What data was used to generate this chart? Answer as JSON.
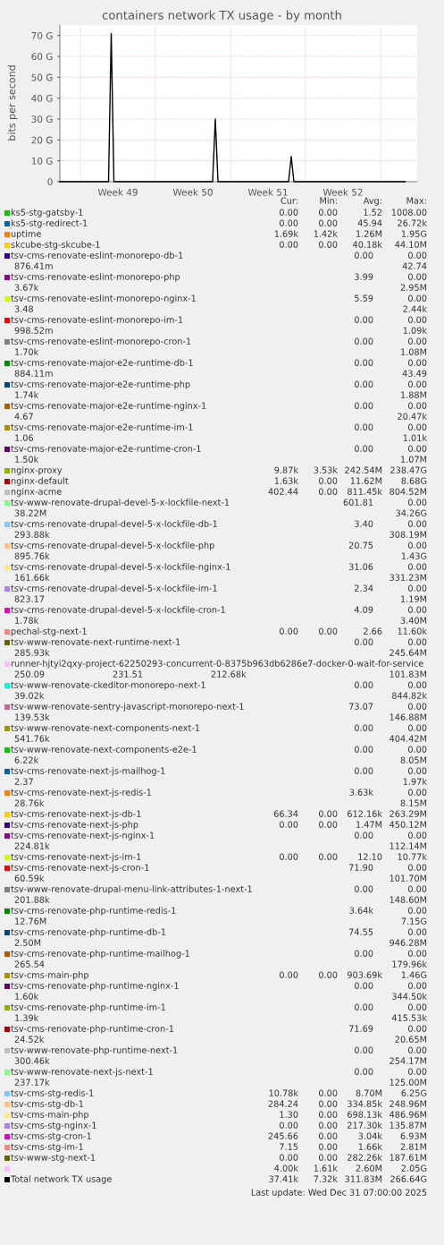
{
  "chart_data": {
    "type": "line",
    "title": "containers network TX usage - by month",
    "ylabel": "bits per second",
    "x": [
      "2025-11-29T02:00",
      "2025-12-03T15:00",
      "2025-12-03T21:00",
      "2025-12-04T03:00",
      "2025-12-13T08:00",
      "2025-12-13T14:00",
      "2025-12-13T20:00",
      "2025-12-20T10:00",
      "2025-12-20T16:00",
      "2025-12-20T22:00",
      "2025-12-31T07:00"
    ],
    "xlim": [
      "2025-11-29T02:00",
      "2026-01-01T10:00"
    ],
    "xticks": [
      {
        "value": "2025-12-01",
        "label": null
      },
      {
        "value": "2025-12-04T12:00",
        "label": "Week 49"
      },
      {
        "value": "2025-12-08",
        "label": null
      },
      {
        "value": "2025-12-11T12:00",
        "label": "Week 50"
      },
      {
        "value": "2025-12-15",
        "label": null
      },
      {
        "value": "2025-12-18T12:00",
        "label": "Week 51"
      },
      {
        "value": "2025-12-22",
        "label": null
      },
      {
        "value": "2025-12-25T12:00",
        "label": "Week 52"
      },
      {
        "value": "2025-12-29",
        "label": null
      }
    ],
    "ylim": [
      0,
      75
    ],
    "yticks": [
      0,
      {
        "value": 10,
        "label": "10 G"
      },
      {
        "value": 20,
        "label": "20 G"
      },
      {
        "value": 30,
        "label": "30 G"
      },
      {
        "value": 40,
        "label": "40 G"
      },
      {
        "value": 50,
        "label": "50 G"
      },
      {
        "value": 60,
        "label": "60 G"
      },
      {
        "value": 70,
        "label": "70 G"
      }
    ],
    "grid": true,
    "legend": "bottom",
    "series": [
      {
        "name": "ks5-stg-gatsby-1",
        "color": "#00cc00",
        "values": [
          null,
          null,
          null,
          null,
          null,
          null,
          null,
          null,
          null,
          null,
          null
        ]
      },
      {
        "name": "ks5-stg-redirect-1",
        "color": "#0066b3",
        "values": [
          null,
          null,
          null,
          null,
          null,
          null,
          null,
          null,
          null,
          null,
          null
        ]
      },
      {
        "name": "uptime",
        "color": "#ff8000",
        "values": [
          null,
          null,
          null,
          null,
          null,
          null,
          null,
          null,
          null,
          null,
          null
        ]
      },
      {
        "name": "skcube-stg-skcube-1",
        "color": "#ffcc00",
        "values": [
          null,
          null,
          null,
          null,
          null,
          null,
          null,
          null,
          null,
          null,
          null
        ]
      },
      {
        "name": "tsv-cms-renovate-eslint-monorepo-db-1",
        "color": "#330099",
        "values": [
          null,
          null,
          null,
          null,
          null,
          null,
          null,
          null,
          null,
          null,
          null
        ]
      },
      {
        "name": "tsv-cms-renovate-eslint-monorepo-php",
        "color": "#990099",
        "values": [
          null,
          null,
          null,
          null,
          null,
          null,
          null,
          null,
          null,
          null,
          null
        ]
      },
      {
        "name": "tsv-cms-renovate-eslint-monorepo-nginx-1",
        "color": "#ccff00",
        "values": [
          null,
          null,
          null,
          null,
          null,
          null,
          null,
          null,
          null,
          null,
          null
        ]
      },
      {
        "name": "tsv-cms-renovate-eslint-monorepo-im-1",
        "color": "#ff0000",
        "values": [
          null,
          null,
          null,
          null,
          null,
          null,
          null,
          null,
          null,
          null,
          null
        ]
      },
      {
        "name": "tsv-cms-renovate-eslint-monorepo-cron-1",
        "color": "#808080",
        "values": [
          null,
          null,
          null,
          null,
          null,
          null,
          null,
          null,
          null,
          null,
          null
        ]
      },
      {
        "name": "tsv-cms-renovate-major-e2e-runtime-db-1",
        "color": "#008f00",
        "values": [
          null,
          null,
          null,
          null,
          null,
          null,
          null,
          null,
          null,
          null,
          null
        ]
      },
      {
        "name": "tsv-cms-renovate-major-e2e-runtime-php",
        "color": "#00487d",
        "values": [
          null,
          null,
          null,
          null,
          null,
          null,
          null,
          null,
          null,
          null,
          null
        ]
      },
      {
        "name": "tsv-cms-renovate-major-e2e-runtime-nginx-1",
        "color": "#b35a00",
        "values": [
          null,
          null,
          null,
          null,
          null,
          null,
          null,
          null,
          null,
          null,
          null
        ]
      },
      {
        "name": "tsv-cms-renovate-major-e2e-runtime-im-1",
        "color": "#b38f00",
        "values": [
          null,
          null,
          null,
          null,
          null,
          null,
          null,
          null,
          null,
          null,
          null
        ]
      },
      {
        "name": "tsv-cms-renovate-major-e2e-runtime-cron-1",
        "color": "#6b006b",
        "values": [
          null,
          null,
          null,
          null,
          null,
          null,
          null,
          null,
          null,
          null,
          null
        ]
      },
      {
        "name": "nginx-proxy",
        "color": "#8fb300",
        "values": [
          null,
          null,
          null,
          null,
          null,
          null,
          null,
          null,
          null,
          null,
          null
        ]
      },
      {
        "name": "nginx-default",
        "color": "#b30000",
        "values": [
          null,
          null,
          null,
          null,
          null,
          null,
          null,
          null,
          null,
          null,
          null
        ]
      },
      {
        "name": "nginx-acme",
        "color": "#bebebe",
        "values": [
          null,
          null,
          null,
          null,
          null,
          null,
          null,
          null,
          null,
          null,
          null
        ]
      },
      {
        "name": "tsv-www-renovate-drupal-devel-5-x-lockfile-next-1",
        "color": "#80ff80",
        "values": [
          null,
          null,
          null,
          null,
          null,
          null,
          null,
          null,
          null,
          null,
          null
        ]
      },
      {
        "name": "tsv-cms-renovate-drupal-devel-5-x-lockfile-db-1",
        "color": "#80c9ff",
        "values": [
          null,
          null,
          null,
          null,
          null,
          null,
          null,
          null,
          null,
          null,
          null
        ]
      },
      {
        "name": "tsv-cms-renovate-drupal-devel-5-x-lockfile-php",
        "color": "#ffc080",
        "values": [
          null,
          null,
          null,
          null,
          null,
          null,
          null,
          null,
          null,
          null,
          null
        ]
      },
      {
        "name": "tsv-cms-renovate-drupal-devel-5-x-lockfile-nginx-1",
        "color": "#ffe680",
        "values": [
          null,
          null,
          null,
          null,
          null,
          null,
          null,
          null,
          null,
          null,
          null
        ]
      },
      {
        "name": "tsv-cms-renovate-drupal-devel-5-x-lockfile-im-1",
        "color": "#aa80ff",
        "values": [
          null,
          null,
          null,
          null,
          null,
          null,
          null,
          null,
          null,
          null,
          null
        ]
      },
      {
        "name": "tsv-cms-renovate-drupal-devel-5-x-lockfile-cron-1",
        "color": "#ee00cc",
        "values": [
          null,
          null,
          null,
          null,
          null,
          null,
          null,
          null,
          null,
          null,
          null
        ]
      },
      {
        "name": "pechal-stg-next-1",
        "color": "#ff8080",
        "values": [
          null,
          null,
          null,
          null,
          null,
          null,
          null,
          null,
          null,
          null,
          null
        ]
      },
      {
        "name": "tsv-www-renovate-next-runtime-next-1",
        "color": "#666600",
        "values": [
          null,
          null,
          null,
          null,
          null,
          null,
          null,
          null,
          null,
          null,
          null
        ]
      },
      {
        "name": "runner-hjtyi2qxy-project-62250293-concurrent-0-8375b963db6286e7-docker-0-wait-for-service",
        "color": "#ffbfff",
        "values": [
          null,
          null,
          null,
          null,
          null,
          null,
          null,
          null,
          null,
          null,
          null
        ]
      },
      {
        "name": "tsv-www-renovate-ckeditor-monorepo-next-1",
        "color": "#00ffcc",
        "values": [
          null,
          null,
          null,
          null,
          null,
          null,
          null,
          null,
          null,
          null,
          null
        ]
      },
      {
        "name": "tsv-www-renovate-sentry-javascript-monorepo-next-1",
        "color": "#cc6699",
        "values": [
          null,
          null,
          null,
          null,
          null,
          null,
          null,
          null,
          null,
          null,
          null
        ]
      },
      {
        "name": "tsv-www-renovate-next-components-next-1",
        "color": "#999900",
        "values": [
          null,
          null,
          null,
          null,
          null,
          null,
          null,
          null,
          null,
          null,
          null
        ]
      },
      {
        "name": "tsv-www-renovate-next-components-e2e-1",
        "color": "#00cc00",
        "values": [
          null,
          null,
          null,
          null,
          null,
          null,
          null,
          null,
          null,
          null,
          null
        ]
      },
      {
        "name": "tsv-cms-renovate-next-js-mailhog-1",
        "color": "#0066b3",
        "values": [
          null,
          null,
          null,
          null,
          null,
          null,
          null,
          null,
          null,
          null,
          null
        ]
      },
      {
        "name": "tsv-cms-renovate-next-js-redis-1",
        "color": "#ff8000",
        "values": [
          null,
          null,
          null,
          null,
          null,
          null,
          null,
          null,
          null,
          null,
          null
        ]
      },
      {
        "name": "tsv-cms-renovate-next-js-db-1",
        "color": "#ffcc00",
        "values": [
          null,
          null,
          null,
          null,
          null,
          null,
          null,
          null,
          null,
          null,
          null
        ]
      },
      {
        "name": "tsv-cms-renovate-next-js-php",
        "color": "#330099",
        "values": [
          null,
          null,
          null,
          null,
          null,
          null,
          null,
          null,
          null,
          null,
          null
        ]
      },
      {
        "name": "tsv-cms-renovate-next-js-nginx-1",
        "color": "#990099",
        "values": [
          null,
          null,
          null,
          null,
          null,
          null,
          null,
          null,
          null,
          null,
          null
        ]
      },
      {
        "name": "tsv-cms-renovate-next-js-im-1",
        "color": "#ccff00",
        "values": [
          null,
          null,
          null,
          null,
          null,
          null,
          null,
          null,
          null,
          null,
          null
        ]
      },
      {
        "name": "tsv-cms-renovate-next-js-cron-1",
        "color": "#ff0000",
        "values": [
          null,
          null,
          null,
          null,
          null,
          null,
          null,
          null,
          null,
          null,
          null
        ]
      },
      {
        "name": "tsv-www-renovate-drupal-menu-link-attributes-1-next-1",
        "color": "#808080",
        "values": [
          null,
          null,
          null,
          null,
          null,
          null,
          null,
          null,
          null,
          null,
          null
        ]
      },
      {
        "name": "tsv-cms-renovate-php-runtime-redis-1",
        "color": "#008f00",
        "values": [
          null,
          null,
          null,
          null,
          null,
          null,
          null,
          null,
          null,
          null,
          null
        ]
      },
      {
        "name": "tsv-cms-renovate-php-runtime-db-1",
        "color": "#00487d",
        "values": [
          null,
          null,
          null,
          null,
          null,
          null,
          null,
          null,
          null,
          null,
          null
        ]
      },
      {
        "name": "tsv-cms-renovate-php-runtime-mailhog-1",
        "color": "#b35a00",
        "values": [
          null,
          null,
          null,
          null,
          null,
          null,
          null,
          null,
          null,
          null,
          null
        ]
      },
      {
        "name": "tsv-cms-main-php",
        "color": "#b38f00",
        "values": [
          null,
          null,
          null,
          null,
          null,
          null,
          null,
          null,
          null,
          null,
          null
        ]
      },
      {
        "name": "tsv-cms-renovate-php-runtime-nginx-1",
        "color": "#6b006b",
        "values": [
          null,
          null,
          null,
          null,
          null,
          null,
          null,
          null,
          null,
          null,
          null
        ]
      },
      {
        "name": "tsv-cms-renovate-php-runtime-im-1",
        "color": "#8fb300",
        "values": [
          null,
          null,
          null,
          null,
          null,
          null,
          null,
          null,
          null,
          null,
          null
        ]
      },
      {
        "name": "tsv-cms-renovate-php-runtime-cron-1",
        "color": "#b30000",
        "values": [
          null,
          null,
          null,
          null,
          null,
          null,
          null,
          null,
          null,
          null,
          null
        ]
      },
      {
        "name": "tsv-www-renovate-php-runtime-next-1",
        "color": "#bebebe",
        "values": [
          null,
          null,
          null,
          null,
          null,
          null,
          null,
          null,
          null,
          null,
          null
        ]
      },
      {
        "name": "tsv-www-renovate-next-js-next-1",
        "color": "#80ff80",
        "values": [
          null,
          null,
          null,
          null,
          null,
          null,
          null,
          null,
          null,
          null,
          null
        ]
      },
      {
        "name": "tsv-cms-stg-redis-1",
        "color": "#80c9ff",
        "values": [
          null,
          null,
          null,
          null,
          null,
          null,
          null,
          null,
          null,
          null,
          null
        ]
      },
      {
        "name": "tsv-cms-stg-db-1",
        "color": "#ffc080",
        "values": [
          null,
          null,
          null,
          null,
          null,
          null,
          null,
          null,
          null,
          null,
          null
        ]
      },
      {
        "name": "tsv-cms-main-php",
        "color": "#ffe680",
        "values": [
          null,
          null,
          null,
          null,
          null,
          null,
          null,
          null,
          null,
          null,
          null
        ]
      },
      {
        "name": "tsv-cms-stg-nginx-1",
        "color": "#aa80ff",
        "values": [
          null,
          null,
          null,
          null,
          null,
          null,
          null,
          null,
          null,
          null,
          null
        ]
      },
      {
        "name": "tsv-cms-stg-cron-1",
        "color": "#ee00cc",
        "values": [
          null,
          null,
          null,
          null,
          null,
          null,
          null,
          null,
          null,
          null,
          null
        ]
      },
      {
        "name": "tsv-cms-stg-im-1",
        "color": "#ff8080",
        "values": [
          null,
          null,
          null,
          null,
          null,
          null,
          null,
          null,
          null,
          null,
          null
        ]
      },
      {
        "name": "tsv-www-stg-next-1",
        "color": "#666600",
        "values": [
          null,
          null,
          null,
          null,
          null,
          null,
          null,
          null,
          null,
          null,
          null
        ]
      },
      {
        "color": "#ffbfff",
        "values": [
          null,
          null,
          null,
          null,
          null,
          null,
          null,
          null,
          null,
          null,
          null
        ]
      },
      {
        "name": "Total network TX usage",
        "color": "#000000",
        "values": [
          0,
          0,
          71,
          0,
          0,
          30,
          0,
          0,
          12,
          0,
          0
        ]
      }
    ],
    "annotations": [
      "Cur:",
      "Min:",
      "Avg:",
      "Max:",
      "0.00",
      "0.00",
      "1.52",
      "1008.00",
      "0.00",
      "0.00",
      "45.94",
      "26.72k",
      "1.69k",
      "1.42k",
      "1.26M",
      "1.95G",
      "0.00",
      "0.00",
      "40.18k",
      "44.10M",
      "0.00",
      "0.00",
      "876.41m",
      "42.74",
      "3.99",
      "0.00",
      "3.67k",
      "2.95M",
      "5.59",
      "0.00",
      "3.48",
      "2.44k",
      "0.00",
      "0.00",
      "998.52m",
      "1.09k",
      "0.00",
      "0.00",
      "1.70k",
      "1.08M",
      "0.00",
      "0.00",
      "884.11m",
      "43.49",
      "0.00",
      "0.00",
      "1.74k",
      "1.88M",
      "0.00",
      "0.00",
      "4.67",
      "20.47k",
      "0.00",
      "0.00",
      "1.06",
      "1.01k",
      "0.00",
      "0.00",
      "1.50k",
      "1.07M",
      "9.87k",
      "3.53k",
      "242.54M",
      "238.47G",
      "1.63k",
      "0.00",
      "11.62M",
      "8.68G",
      "402.44",
      "0.00",
      "811.45k",
      "804.52M",
      "601.81",
      "0.00",
      "38.22M",
      "34.26G",
      "3.40",
      "0.00",
      "293.88k",
      "308.19M",
      "20.75",
      "0.00",
      "895.76k",
      "1.43G",
      "31.06",
      "0.00",
      "161.66k",
      "331.23M",
      "2.34",
      "0.00",
      "823.17",
      "1.19M",
      "4.09",
      "0.00",
      "1.78k",
      "3.40M",
      "0.00",
      "0.00",
      "2.66",
      "11.60k",
      "0.00",
      "0.00",
      "285.93k",
      "245.64M",
      "250.09",
      "231.51",
      "212.68k",
      "101.83M",
      "0.00",
      "0.00",
      "39.02k",
      "844.82k",
      "73.07",
      "0.00",
      "139.53k",
      "146.88M",
      "0.00",
      "0.00",
      "541.76k",
      "404.42M",
      "0.00",
      "0.00",
      "6.22k",
      "8.05M",
      "0.00",
      "0.00",
      "2.37",
      "1.97k",
      "3.63k",
      "0.00",
      "28.76k",
      "8.15M",
      "66.34",
      "0.00",
      "612.16k",
      "263.29M",
      "0.00",
      "0.00",
      "1.47M",
      "450.12M",
      "0.00",
      "0.00",
      "224.81k",
      "112.14M",
      "0.00",
      "0.00",
      "12.10",
      "10.77k",
      "71.90",
      "0.00",
      "60.59k",
      "101.70M",
      "0.00",
      "0.00",
      "201.88k",
      "148.60M",
      "3.64k",
      "0.00",
      "12.76M",
      "7.15G",
      "74.55",
      "0.00",
      "2.50M",
      "946.28M",
      "0.00",
      "0.00",
      "265.54",
      "179.96k",
      "0.00",
      "0.00",
      "903.69k",
      "1.46G",
      "0.00",
      "0.00",
      "1.60k",
      "344.50k",
      "0.00",
      "0.00",
      "1.39k",
      "415.53k",
      "71.69",
      "0.00",
      "24.52k",
      "20.65M",
      "0.00",
      "0.00",
      "300.46k",
      "254.17M",
      "0.00",
      "0.00",
      "237.17k",
      "125.00M",
      "10.78k",
      "0.00",
      "8.70M",
      "6.25G",
      "284.24",
      "0.00",
      "334.85k",
      "248.96M",
      "1.30",
      "0.00",
      "698.13k",
      "486.96M",
      "0.00",
      "0.00",
      "217.30k",
      "135.87M",
      "245.66",
      "0.00",
      "3.04k",
      "6.93M",
      "7.15",
      "0.00",
      "1.66k",
      "2.81M",
      "0.00",
      "0.00",
      "282.26k",
      "187.61M",
      "4.00k",
      "1.61k",
      "2.60M",
      "2.05G",
      "37.41k",
      "7.32k",
      "311.83M",
      "266.64G",
      "Last update: Wed Dec 31 07:00:00 2025"
    ]
  }
}
